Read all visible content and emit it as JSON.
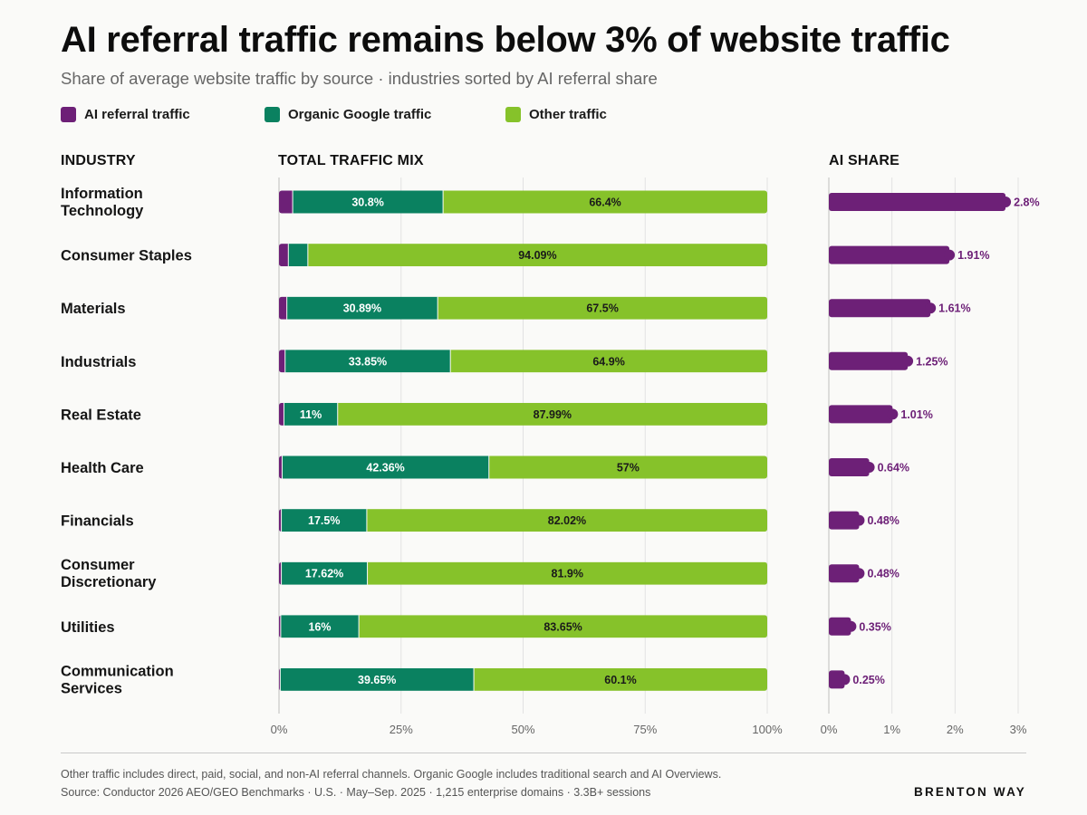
{
  "header": {
    "title": "AI referral traffic remains below 3% of website traffic",
    "subtitle": "Share of average website traffic by source · industries sorted by AI referral share"
  },
  "legend": [
    {
      "label": "AI referral traffic",
      "color": "#6d2077"
    },
    {
      "label": "Organic Google traffic",
      "color": "#0a8160"
    },
    {
      "label": "Other traffic",
      "color": "#86c22a"
    }
  ],
  "columns": {
    "industry": "INDUSTRY",
    "mix": "TOTAL TRAFFIC MIX",
    "ai_share": "AI SHARE"
  },
  "chart_data": [
    {
      "type": "bar",
      "stacked": true,
      "orientation": "horizontal",
      "categories": [
        "Information Technology",
        "Consumer Staples",
        "Materials",
        "Industrials",
        "Real Estate",
        "Health Care",
        "Financials",
        "Consumer Discretionary",
        "Utilities",
        "Communication Services"
      ],
      "series": [
        {
          "name": "AI referral traffic",
          "values": [
            2.8,
            1.91,
            1.61,
            1.25,
            1.01,
            0.64,
            0.48,
            0.48,
            0.35,
            0.25
          ],
          "color": "#6d2077"
        },
        {
          "name": "Organic Google traffic",
          "values": [
            30.8,
            4.0,
            30.89,
            33.85,
            11,
            42.36,
            17.5,
            17.62,
            16,
            39.65
          ],
          "labels": [
            "30.8%",
            "",
            "30.89%",
            "33.85%",
            "11%",
            "42.36%",
            "17.5%",
            "17.62%",
            "16%",
            "39.65%"
          ],
          "color": "#0a8160"
        },
        {
          "name": "Other traffic",
          "values": [
            66.4,
            94.09,
            67.5,
            64.9,
            87.99,
            57,
            82.02,
            81.9,
            83.65,
            60.1
          ],
          "labels": [
            "66.4%",
            "94.09%",
            "67.5%",
            "64.9%",
            "87.99%",
            "57%",
            "82.02%",
            "81.9%",
            "83.65%",
            "60.1%"
          ],
          "color": "#86c22a"
        }
      ],
      "xlim": [
        0,
        100
      ],
      "x_ticks": [
        "0%",
        "25%",
        "50%",
        "75%",
        "100%"
      ],
      "grid": true
    },
    {
      "type": "bar",
      "orientation": "horizontal",
      "categories": [
        "Information Technology",
        "Consumer Staples",
        "Materials",
        "Industrials",
        "Real Estate",
        "Health Care",
        "Financials",
        "Consumer Discretionary",
        "Utilities",
        "Communication Services"
      ],
      "values": [
        2.8,
        1.91,
        1.61,
        1.25,
        1.01,
        0.64,
        0.48,
        0.48,
        0.35,
        0.25
      ],
      "labels": [
        "2.8%",
        "1.91%",
        "1.61%",
        "1.25%",
        "1.01%",
        "0.64%",
        "0.48%",
        "0.48%",
        "0.35%",
        "0.25%"
      ],
      "xlim": [
        0,
        3
      ],
      "x_ticks": [
        "0%",
        "1%",
        "2%",
        "3%"
      ],
      "grid": true,
      "color": "#6d2077"
    }
  ],
  "footer": {
    "note": "Other traffic includes direct, paid, social, and non-AI referral channels. Organic Google includes traditional search and AI Overviews.",
    "source": "Source: Conductor 2026 AEO/GEO Benchmarks · U.S. · May–Sep. 2025 · 1,215 enterprise domains · 3.3B+ sessions",
    "brand": "BRENTON WAY"
  }
}
